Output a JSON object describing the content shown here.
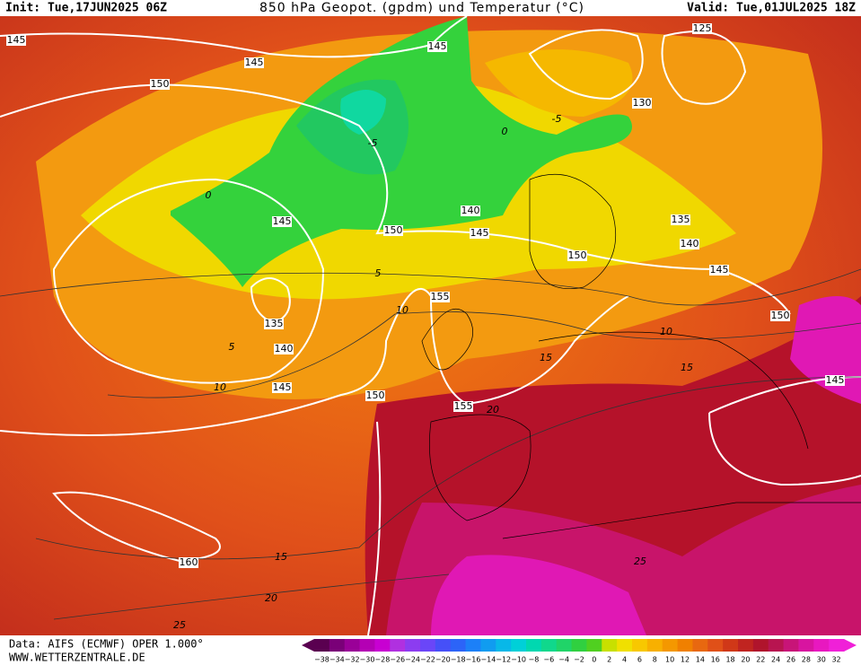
{
  "header": {
    "init": "Init: Tue,17JUN2025 06Z",
    "title": "850 hPa Geopot. (gpdm) und Temperatur (°C)",
    "valid": "Valid: Tue,01JUL2025 18Z"
  },
  "footer": {
    "source": "Data: AIFS (ECMWF) OPER 1.000°",
    "website": "WWW.WETTERZENTRALE.DE"
  },
  "geopotential_labels": [
    "145",
    "145",
    "150",
    "145",
    "125",
    "130",
    "140",
    "145",
    "150",
    "145",
    "135",
    "140",
    "150",
    "145",
    "150",
    "155",
    "135",
    "140",
    "145",
    "150",
    "155",
    "145",
    "160"
  ],
  "temperature_labels": [
    "0",
    "-5",
    "0",
    "-5",
    "5",
    "5",
    "10",
    "10",
    "15",
    "10",
    "15",
    "20",
    "15",
    "20",
    "25",
    "25"
  ],
  "color_scale": {
    "labels": [
      "−38",
      "−34",
      "−32",
      "−30",
      "−28",
      "−26",
      "−24",
      "−22",
      "−20",
      "−18",
      "−16",
      "−14",
      "−12",
      "−10",
      "−8",
      "−6",
      "−4",
      "−2",
      "0",
      "2",
      "4",
      "6",
      "8",
      "10",
      "12",
      "14",
      "16",
      "18",
      "20",
      "22",
      "24",
      "26",
      "28",
      "30",
      "32"
    ]
  }
}
